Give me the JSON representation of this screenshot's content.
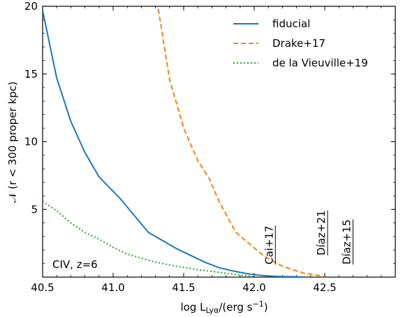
{
  "chart_data": {
    "type": "line",
    "xlabel_main": "log L",
    "xlabel_sub": "Lyα",
    "xlabel_tail": "/(erg s",
    "xlabel_exp": "−1",
    "xlabel_close": ")",
    "ylabel": "𝒩 (r < 300 proper kpc)",
    "xlim": [
      40.5,
      43.0
    ],
    "ylim": [
      0,
      20
    ],
    "xticks": [
      40.5,
      41.0,
      41.5,
      42.0,
      42.5
    ],
    "xtick_labels": [
      "40.5",
      "41.0",
      "41.5",
      "42.0",
      "42.5"
    ],
    "yticks": [
      5,
      10,
      15,
      20
    ],
    "ytick_labels": [
      "5",
      "10",
      "15",
      "20"
    ],
    "legend_position": "upper-right",
    "series": [
      {
        "name": "fiducial",
        "color": "#1f77b4",
        "dash": "solid",
        "x": [
          40.5,
          40.6,
          40.7,
          40.8,
          40.9,
          41.05,
          41.25,
          41.35,
          41.45,
          41.55,
          41.65,
          41.75,
          41.85,
          41.95,
          42.05,
          42.15,
          42.25,
          42.35
        ],
        "y": [
          19.7,
          14.7,
          11.5,
          9.2,
          7.4,
          5.8,
          3.3,
          2.7,
          2.1,
          1.6,
          1.1,
          0.7,
          0.45,
          0.25,
          0.12,
          0.06,
          0.03,
          0.01
        ]
      },
      {
        "name": "Drake+17",
        "color": "#ff7f0e",
        "dash": "dashed",
        "x": [
          41.32,
          41.4,
          41.5,
          41.6,
          41.68,
          41.75,
          41.87,
          41.95,
          42.07,
          42.2,
          42.35,
          42.5
        ],
        "y": [
          19.8,
          14.6,
          11.0,
          8.6,
          7.3,
          5.6,
          3.3,
          2.6,
          1.55,
          0.8,
          0.3,
          0.05
        ]
      },
      {
        "name": "de la Vieuville+19",
        "color": "#2ca02c",
        "dash": "dotted",
        "x": [
          40.5,
          40.6,
          40.7,
          40.8,
          40.9,
          41.0,
          41.1,
          41.2,
          41.3,
          41.45,
          41.6,
          41.75,
          41.9,
          42.0
        ],
        "y": [
          5.6,
          4.9,
          4.0,
          3.3,
          2.8,
          2.2,
          1.7,
          1.4,
          1.1,
          0.8,
          0.55,
          0.35,
          0.15,
          0.05
        ]
      }
    ],
    "annotations": [
      {
        "text": "CIV, z=6"
      },
      {
        "text": "Cai+17",
        "x": 42.13
      },
      {
        "text": "Díaz+21",
        "x": 42.5
      },
      {
        "text": "Díaz+15",
        "x": 42.68
      }
    ]
  }
}
